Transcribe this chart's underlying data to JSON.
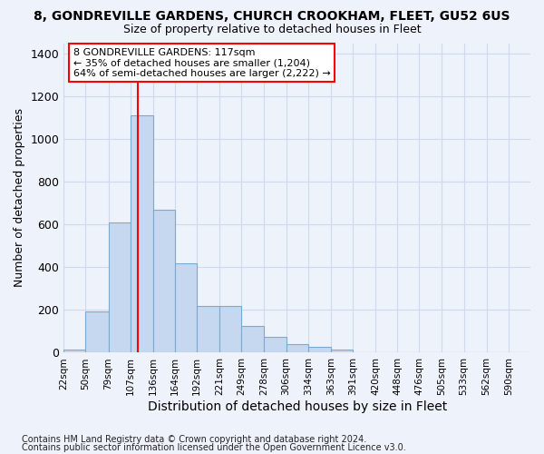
{
  "title": "8, GONDREVILLE GARDENS, CHURCH CROOKHAM, FLEET, GU52 6US",
  "subtitle": "Size of property relative to detached houses in Fleet",
  "xlabel": "Distribution of detached houses by size in Fleet",
  "ylabel": "Number of detached properties",
  "footer_line1": "Contains HM Land Registry data © Crown copyright and database right 2024.",
  "footer_line2": "Contains public sector information licensed under the Open Government Licence v3.0.",
  "annotation_line1": "8 GONDREVILLE GARDENS: 117sqm",
  "annotation_line2": "← 35% of detached houses are smaller (1,204)",
  "annotation_line3": "64% of semi-detached houses are larger (2,222) →",
  "property_size": 117,
  "bar_color": "#c5d8f0",
  "bar_edge_color": "#7aaad4",
  "vline_color": "red",
  "bg_color": "#eef2fb",
  "grid_color": "#d0d8f0",
  "bin_edges": [
    22,
    50,
    79,
    107,
    136,
    164,
    192,
    221,
    249,
    278,
    306,
    334,
    363,
    391,
    420,
    448,
    476,
    505,
    533,
    562,
    590,
    618
  ],
  "bin_labels": [
    "22sqm",
    "50sqm",
    "79sqm",
    "107sqm",
    "136sqm",
    "164sqm",
    "192sqm",
    "221sqm",
    "249sqm",
    "278sqm",
    "306sqm",
    "334sqm",
    "363sqm",
    "391sqm",
    "420sqm",
    "448sqm",
    "476sqm",
    "505sqm",
    "533sqm",
    "562sqm",
    "590sqm"
  ],
  "values": [
    15,
    195,
    610,
    1110,
    670,
    420,
    220,
    220,
    125,
    75,
    40,
    28,
    15,
    0,
    0,
    0,
    0,
    0,
    0,
    0,
    0
  ],
  "ylim": [
    0,
    1450
  ],
  "yticks": [
    0,
    200,
    400,
    600,
    800,
    1000,
    1200,
    1400
  ]
}
